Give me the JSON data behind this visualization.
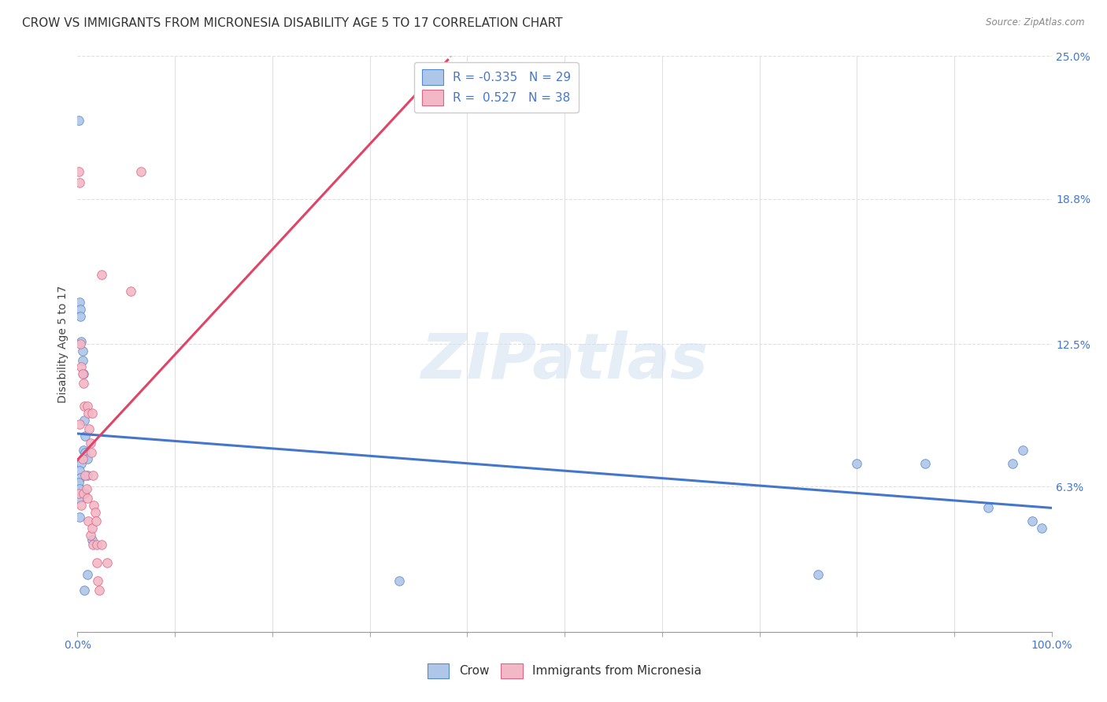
{
  "title": "CROW VS IMMIGRANTS FROM MICRONESIA DISABILITY AGE 5 TO 17 CORRELATION CHART",
  "source": "Source: ZipAtlas.com",
  "ylabel": "Disability Age 5 to 17",
  "xlim": [
    0,
    1.0
  ],
  "ylim": [
    0,
    0.25
  ],
  "y_ticks": [
    0.063,
    0.125,
    0.188,
    0.25
  ],
  "y_tick_labels": [
    "6.3%",
    "12.5%",
    "18.8%",
    "25.0%"
  ],
  "crow_color": "#aec6e8",
  "crow_edge_color": "#5588cc",
  "micro_color": "#f2b8c6",
  "micro_edge_color": "#dd6688",
  "crow_line_color": "#4477cc",
  "micro_line_color": "#e04466",
  "legend_label_crow": "Crow",
  "legend_label_micro": "Immigrants from Micronesia",
  "watermark_text": "ZIPatlas",
  "background_color": "#ffffff",
  "grid_color": "#e0e0e0",
  "title_fontsize": 11,
  "axis_label_fontsize": 10,
  "tick_fontsize": 10,
  "dot_size": 70,
  "crow_points_x": [
    0.001,
    0.002,
    0.003,
    0.003,
    0.004,
    0.005,
    0.005,
    0.006,
    0.006,
    0.007,
    0.008,
    0.008,
    0.01,
    0.01,
    0.004,
    0.002,
    0.003,
    0.007,
    0.001,
    0.002,
    0.001,
    0.002,
    0.015,
    0.01,
    0.007,
    0.33,
    0.76,
    0.8,
    0.87,
    0.935,
    0.96,
    0.97,
    0.98,
    0.99
  ],
  "crow_points_y": [
    0.222,
    0.143,
    0.14,
    0.137,
    0.126,
    0.122,
    0.118,
    0.112,
    0.079,
    0.092,
    0.085,
    0.078,
    0.075,
    0.068,
    0.073,
    0.07,
    0.067,
    0.06,
    0.065,
    0.062,
    0.058,
    0.05,
    0.04,
    0.025,
    0.018,
    0.022,
    0.025,
    0.073,
    0.073,
    0.054,
    0.073,
    0.079,
    0.048,
    0.045
  ],
  "micro_points_x": [
    0.001,
    0.001,
    0.002,
    0.003,
    0.004,
    0.004,
    0.005,
    0.005,
    0.006,
    0.006,
    0.007,
    0.008,
    0.009,
    0.01,
    0.01,
    0.011,
    0.011,
    0.012,
    0.013,
    0.013,
    0.014,
    0.015,
    0.015,
    0.016,
    0.016,
    0.017,
    0.018,
    0.019,
    0.02,
    0.02,
    0.021,
    0.022,
    0.025,
    0.025,
    0.03,
    0.055,
    0.065,
    0.002
  ],
  "micro_points_y": [
    0.2,
    0.06,
    0.09,
    0.125,
    0.115,
    0.055,
    0.112,
    0.075,
    0.108,
    0.06,
    0.098,
    0.068,
    0.062,
    0.098,
    0.058,
    0.095,
    0.048,
    0.088,
    0.082,
    0.042,
    0.078,
    0.095,
    0.045,
    0.068,
    0.038,
    0.055,
    0.052,
    0.048,
    0.038,
    0.03,
    0.022,
    0.018,
    0.155,
    0.038,
    0.03,
    0.148,
    0.2,
    0.195
  ]
}
